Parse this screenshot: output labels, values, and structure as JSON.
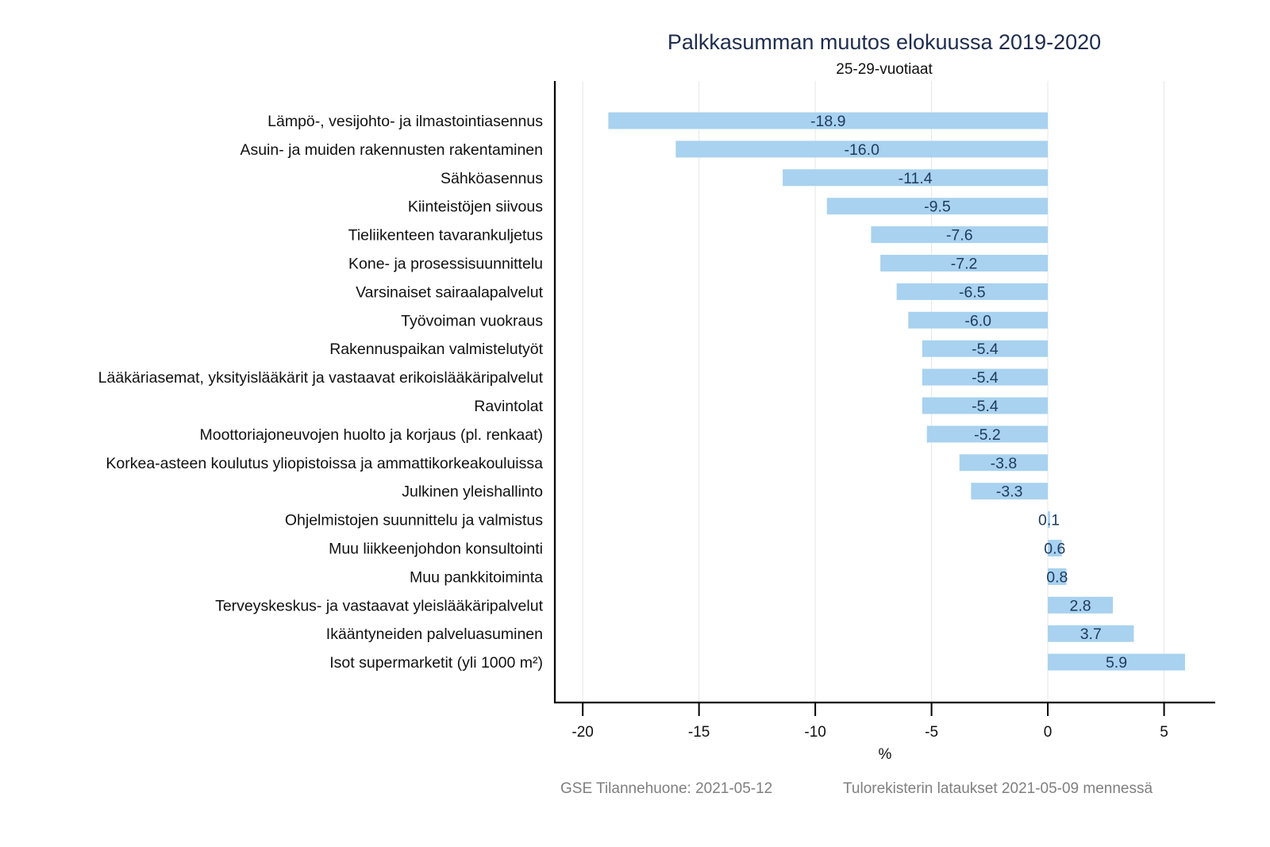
{
  "chart_data": {
    "type": "bar",
    "orientation": "horizontal",
    "title": "Palkkasumman muutos elokuussa 2019-2020",
    "subtitle": "25-29-vuotiaat",
    "xlabel": "%",
    "ylabel": "",
    "xlim": [
      -21.2,
      7.2
    ],
    "xticks": [
      -20,
      -15,
      -10,
      -5,
      0,
      5
    ],
    "grid": "vertical",
    "legend": "none",
    "bar_color": "#a8d2ef",
    "categories": [
      "Lämpö-, vesijohto- ja ilmastointiasennus",
      "Asuin- ja muiden rakennusten rakentaminen",
      "Sähköasennus",
      "Kiinteistöjen siivous",
      "Tieliikenteen tavarankuljetus",
      "Kone- ja prosessisuunnittelu",
      "Varsinaiset sairaalapalvelut",
      "Työvoiman vuokraus",
      "Rakennuspaikan valmistelutyöt",
      "Lääkäriasemat, yksityislääkärit ja vastaavat erikoislääkäripalvelut",
      "Ravintolat",
      "Moottoriajoneuvojen huolto ja korjaus (pl. renkaat)",
      "Korkea-asteen koulutus yliopistoissa ja ammattikorkeakouluissa",
      "Julkinen yleishallinto",
      "Ohjelmistojen suunnittelu ja valmistus",
      "Muu liikkeenjohdon konsultointi",
      "Muu pankkitoiminta",
      "Terveyskeskus- ja vastaavat yleislääkäripalvelut",
      "Ikääntyneiden palveluasuminen",
      "Isot supermarketit (yli 1000 m²)"
    ],
    "values": [
      -18.9,
      -16.0,
      -11.4,
      -9.5,
      -7.6,
      -7.2,
      -6.5,
      -6.0,
      -5.4,
      -5.4,
      -5.4,
      -5.2,
      -3.8,
      -3.3,
      0.1,
      0.6,
      0.8,
      2.8,
      3.7,
      5.9
    ],
    "data_labels": [
      "-18.9",
      "-16.0",
      "-11.4",
      "-9.5",
      "-7.6",
      "-7.2",
      "-6.5",
      "-6.0",
      "-5.4",
      "-5.4",
      "-5.4",
      "-5.2",
      "-3.8",
      "-3.3",
      "0.1",
      "0.6",
      "0.8",
      "2.8",
      "3.7",
      "5.9"
    ],
    "tick_labels": [
      "-20",
      "-15",
      "-10",
      "-5",
      "0",
      "5"
    ]
  },
  "footer": {
    "source": "GSE Tilannehuone: 2021-05-12",
    "note": "Tulorekisterin lataukset 2021-05-09 mennessä"
  }
}
